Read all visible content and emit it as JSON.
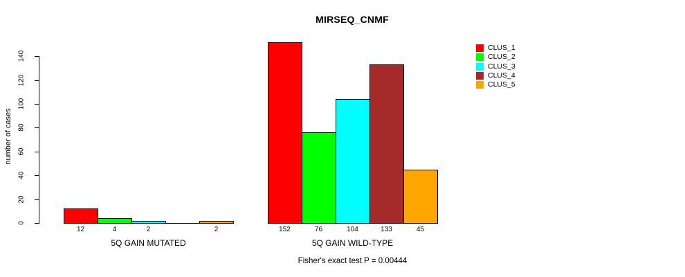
{
  "title": "MIRSEQ_CNMF",
  "chart_data": {
    "type": "bar",
    "title": "MIRSEQ_CNMF",
    "ylabel": "number of cases",
    "xlabel": "",
    "ylim": [
      0,
      152
    ],
    "yticks": [
      0,
      20,
      40,
      60,
      80,
      100,
      120,
      140
    ],
    "grid": false,
    "legend_position": "top-right",
    "series_colors": [
      "#FF0000",
      "#00FF00",
      "#00FFFF",
      "#A52A2A",
      "#FFA500"
    ],
    "legend": [
      "CLUS_1",
      "CLUS_2",
      "CLUS_3",
      "CLUS_4",
      "CLUS_5"
    ],
    "groups": [
      {
        "label": "5Q GAIN MUTATED",
        "values": [
          12,
          4,
          2,
          0,
          2
        ],
        "bar_labels": [
          "12",
          "4",
          "2",
          "",
          "2"
        ]
      },
      {
        "label": "5Q GAIN WILD-TYPE",
        "values": [
          152,
          76,
          104,
          133,
          45
        ],
        "bar_labels": [
          "152",
          "76",
          "104",
          "133",
          "45"
        ]
      }
    ],
    "footnote": "Fisher's exact test P = 0.00444"
  }
}
